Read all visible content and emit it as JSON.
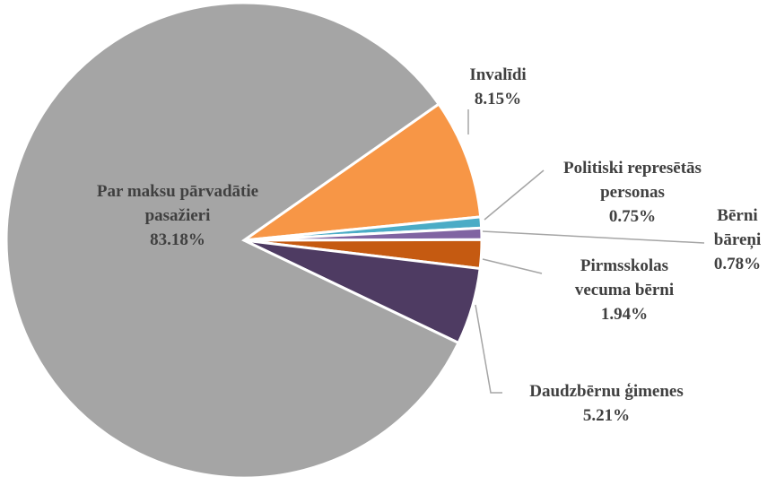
{
  "chart_data": {
    "type": "pie",
    "categories": [
      "Invalīdi",
      "Politiski represētās personas",
      "Bērni bāreņi",
      "Pirmsskolas vecuma bērni",
      "Daudzbērnu ģimenes",
      "Par maksu pārvadātie pasažieri"
    ],
    "values": [
      8.15,
      0.75,
      0.78,
      1.94,
      5.21,
      83.18
    ],
    "value_labels": [
      "8.15%",
      "0.75%",
      "0.78%",
      "1.94%",
      "5.21%",
      "83.18%"
    ],
    "colors": [
      "#f79646",
      "#4bacc6",
      "#8064a2",
      "#c55a11",
      "#4e3b62",
      "#a5a5a5"
    ]
  }
}
